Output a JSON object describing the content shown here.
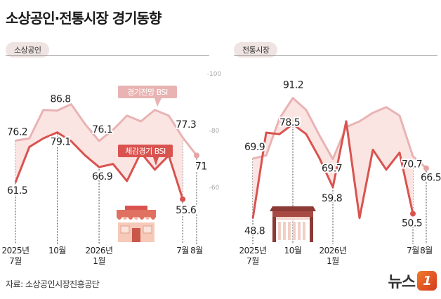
{
  "header": {
    "title": "소상공인·전통시장 경기동향",
    "source": "자료: 소상공인시장진흥공단",
    "logo_text": "뉴스",
    "logo_badge": "1"
  },
  "colors": {
    "outlook_line": "#e9b3b3",
    "outlook_dot": "#e6a3a3",
    "actual_line": "#d9534f",
    "fill": "#fbe5e3",
    "grid_text": "#a9a9a9",
    "pill_bg": "#efe4e2"
  },
  "chart_data": [
    {
      "type": "line",
      "panel_label": "소상공인",
      "ylim": [
        40,
        100
      ],
      "yticks": [
        60,
        80,
        100
      ],
      "x_labels": [
        {
          "index": 0,
          "lines": [
            "2025년",
            "7월"
          ]
        },
        {
          "index": 3,
          "lines": [
            "10월"
          ]
        },
        {
          "index": 6,
          "lines": [
            "2026년",
            "1월"
          ]
        },
        {
          "index": 12,
          "lines": [
            "7월"
          ]
        },
        {
          "index": 13,
          "lines": [
            "8월"
          ]
        }
      ],
      "series": [
        {
          "name": "경기전망 BSI",
          "values": [
            76.2,
            77,
            87,
            86.8,
            89,
            82,
            76.1,
            80,
            85,
            83,
            87,
            85,
            77.3,
            71
          ],
          "labeled": [
            {
              "index": 0,
              "text": "76.2"
            },
            {
              "index": 3,
              "text": "86.8"
            },
            {
              "index": 6,
              "text": "76.1"
            },
            {
              "index": 12,
              "text": "77.3"
            },
            {
              "index": 13,
              "text": "71"
            }
          ]
        },
        {
          "name": "체감경기 BSI",
          "values": [
            61.5,
            74,
            77,
            79.1,
            76,
            71,
            66.9,
            68,
            62,
            72,
            66,
            71,
            55.6
          ],
          "labeled": [
            {
              "index": 0,
              "text": "61.5"
            },
            {
              "index": 3,
              "text": "79.1"
            },
            {
              "index": 6,
              "text": "66.9"
            },
            {
              "index": 12,
              "text": "55.6"
            }
          ]
        }
      ]
    },
    {
      "type": "line",
      "panel_label": "전통시장",
      "ylim": [
        40,
        100
      ],
      "yticks": [
        60,
        80,
        100
      ],
      "x_labels": [
        {
          "index": 0,
          "lines": [
            "2025년",
            "7월"
          ]
        },
        {
          "index": 3,
          "lines": [
            "10월"
          ]
        },
        {
          "index": 6,
          "lines": [
            "2026년",
            "1월"
          ]
        },
        {
          "index": 12,
          "lines": [
            "7월"
          ]
        },
        {
          "index": 13,
          "lines": [
            "8월"
          ]
        }
      ],
      "series": [
        {
          "name": "경기전망 BSI",
          "values": [
            69.9,
            71,
            84,
            91.2,
            87,
            78,
            69.7,
            81,
            83,
            86,
            88,
            85,
            70.7,
            66.5
          ],
          "labeled": [
            {
              "index": 0,
              "text": "69.9"
            },
            {
              "index": 3,
              "text": "91.2"
            },
            {
              "index": 6,
              "text": "69.7"
            },
            {
              "index": 12,
              "text": "70.7"
            },
            {
              "index": 13,
              "text": "66.5"
            }
          ]
        },
        {
          "name": "체감경기 BSI",
          "values": [
            48.8,
            79,
            78.5,
            82,
            78.5,
            70,
            59.8,
            83,
            49,
            73,
            66,
            72,
            50.5
          ],
          "labeled": [
            {
              "index": 0,
              "text": "48.8"
            },
            {
              "index": 2,
              "text": "78.5"
            },
            {
              "index": 6,
              "text": "59.8"
            },
            {
              "index": 12,
              "text": "50.5"
            }
          ]
        }
      ]
    }
  ]
}
